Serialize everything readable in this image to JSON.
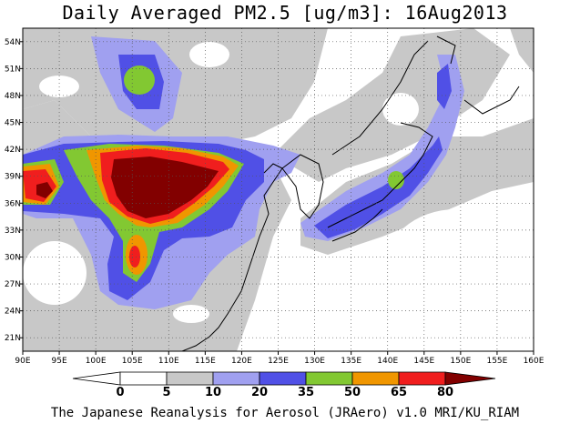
{
  "title": "Daily Averaged PM2.5 [ug/m3]: 16Aug2013",
  "footer": "The Japanese Reanalysis for Aerosol (JRAero) v1.0 MRI/KU_RIAM",
  "map": {
    "lon_range": [
      90,
      160
    ],
    "lat_range": [
      19.5,
      55.5
    ],
    "lon_ticks": [
      "90E",
      "95E",
      "100E",
      "105E",
      "110E",
      "115E",
      "120E",
      "125E",
      "130E",
      "135E",
      "140E",
      "145E",
      "150E",
      "155E",
      "160E"
    ],
    "lat_ticks": [
      "54N",
      "51N",
      "48N",
      "45N",
      "42N",
      "39N",
      "36N",
      "33N",
      "30N",
      "27N",
      "24N",
      "21N"
    ],
    "grid": true
  },
  "legend": {
    "labels": [
      "0",
      "5",
      "10",
      "20",
      "35",
      "50",
      "65",
      "80"
    ],
    "colors": [
      "#ffffff",
      "#c8c8c8",
      "#a0a0f0",
      "#5050e6",
      "#82c832",
      "#f09600",
      "#f01e1e",
      "#820000"
    ]
  }
}
